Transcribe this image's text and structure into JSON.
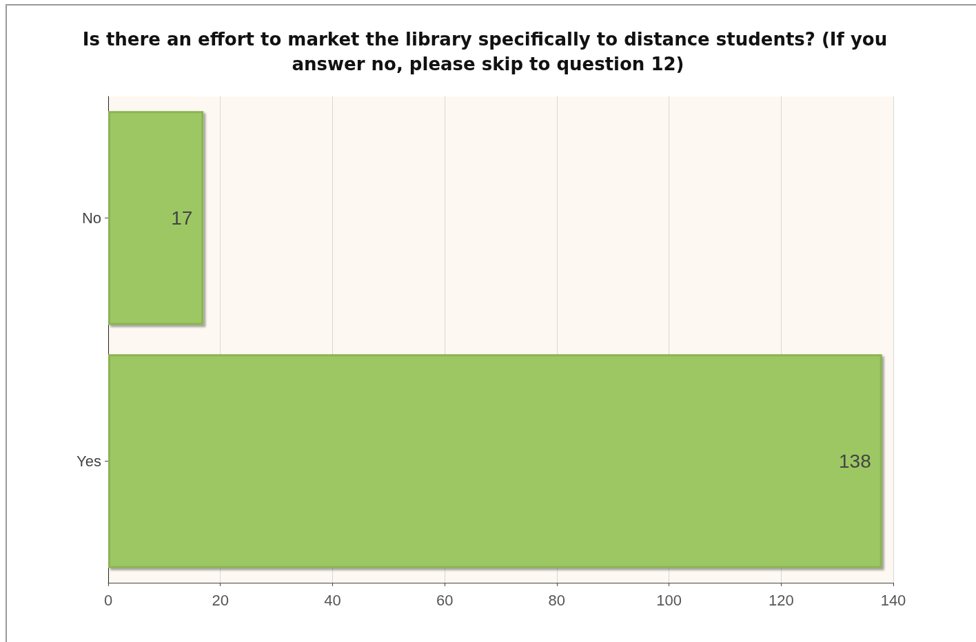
{
  "chart_data": {
    "type": "bar",
    "orientation": "horizontal",
    "title": "Is there an effort to market the library specifically to distance students? (If you answer no, please skip to question 12)",
    "categories": [
      "No",
      "Yes"
    ],
    "values": [
      17,
      138
    ],
    "color": "#9cc764",
    "xlim": [
      0,
      140
    ],
    "xticks": [
      0,
      20,
      40,
      60,
      80,
      100,
      120,
      140
    ],
    "grid": "x",
    "data_labels": true
  }
}
